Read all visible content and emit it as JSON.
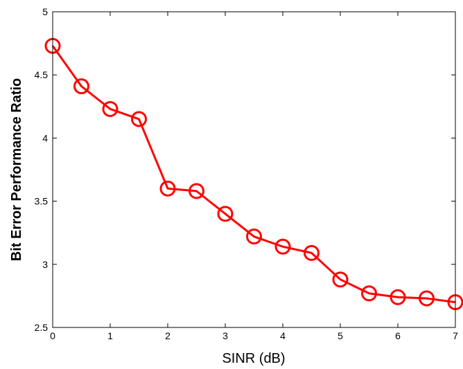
{
  "chart_data": {
    "type": "line",
    "title": "",
    "xlabel": "SINR (dB)",
    "ylabel": "Bit Error Performance Ratio",
    "xlim": [
      0,
      7
    ],
    "ylim": [
      2.5,
      5
    ],
    "xticks": [
      0,
      1,
      2,
      3,
      4,
      5,
      6,
      7
    ],
    "yticks": [
      2.5,
      3,
      3.5,
      4,
      4.5,
      5
    ],
    "xtick_labels": [
      "0",
      "1",
      "2",
      "3",
      "4",
      "5",
      "6",
      "7"
    ],
    "ytick_labels": [
      "2.5",
      "3",
      "3.5",
      "4",
      "4.5",
      "5"
    ],
    "grid": false,
    "series": [
      {
        "color": "#ff0000",
        "marker": "circle",
        "x": [
          0,
          0.5,
          1,
          1.5,
          2,
          2.5,
          3,
          3.5,
          4,
          4.5,
          5,
          5.5,
          6,
          6.5,
          7
        ],
        "y": [
          4.73,
          4.41,
          4.23,
          4.15,
          3.6,
          3.58,
          3.4,
          3.22,
          3.14,
          3.09,
          2.88,
          2.77,
          2.74,
          2.73,
          2.7
        ]
      }
    ]
  }
}
